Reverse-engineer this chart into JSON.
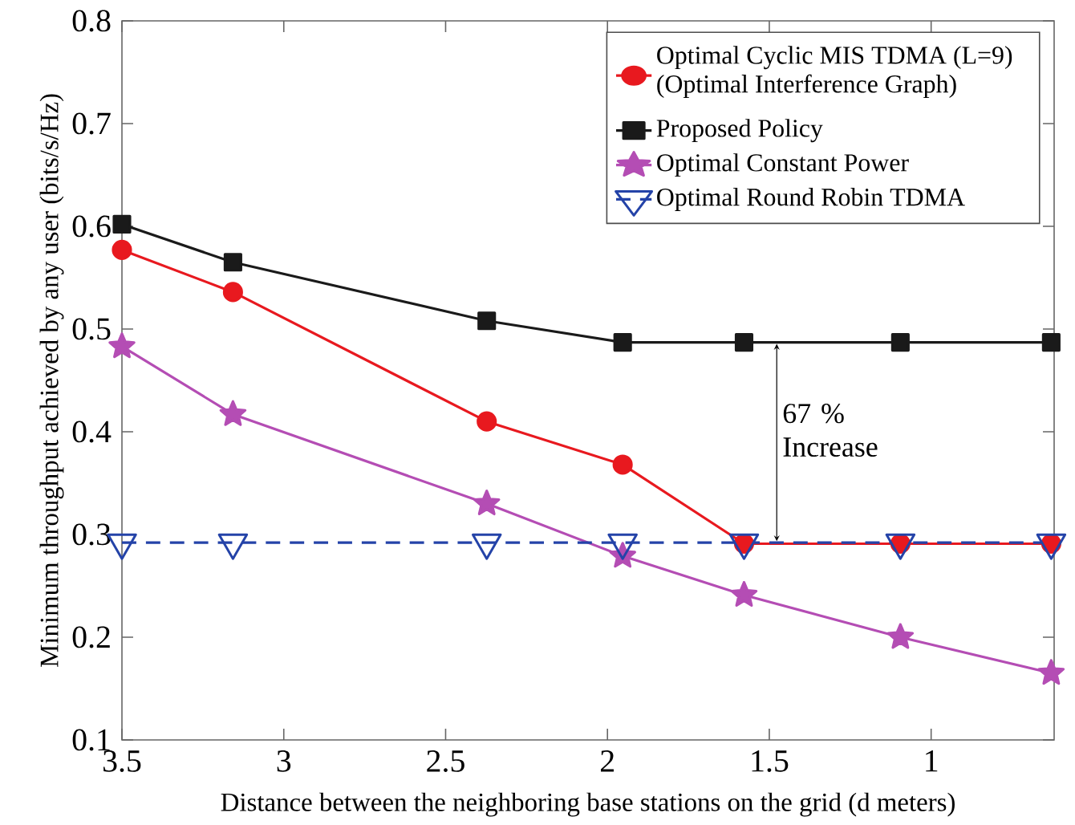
{
  "chart_data": {
    "type": "line",
    "xlabel": "Distance between the neighboring base stations on the grid  (d meters)",
    "ylabel": "Minimum throughput achieved by any user (bits/s/Hz)",
    "x": [
      3.5,
      3.157,
      2.373,
      1.953,
      1.578,
      1.095,
      0.629
    ],
    "series": [
      {
        "name": "Optimal Cyclic MIS TDMA (L=9) (Optimal Interference Graph)",
        "color": "#e8191f",
        "marker": "circle",
        "line_style": "solid",
        "values": [
          0.577,
          0.536,
          0.41,
          0.368,
          0.291,
          0.291,
          0.291
        ]
      },
      {
        "name": "Proposed Policy",
        "color": "#1a1a1a",
        "marker": "square",
        "line_style": "solid",
        "values": [
          0.602,
          0.565,
          0.508,
          0.487,
          0.487,
          0.487,
          0.487
        ]
      },
      {
        "name": "Optimal Constant Power",
        "color": "#b44db4",
        "marker": "star",
        "line_style": "solid",
        "values": [
          0.483,
          0.417,
          0.33,
          0.279,
          0.241,
          0.2,
          0.165
        ]
      },
      {
        "name": "Optimal Round Robin TDMA",
        "color": "#2443a8",
        "marker": "triangle",
        "line_style": "dashed",
        "values": [
          0.292,
          0.292,
          0.292,
          0.292,
          0.292,
          0.292,
          0.292
        ]
      }
    ],
    "annotations": [
      {
        "text": "67 % Increase",
        "x": 1.477,
        "y": 0.487
      }
    ],
    "xlim": [
      3.5,
      0.62
    ],
    "ylim": [
      0.1,
      0.8
    ],
    "xticks": [
      3.5,
      3,
      2.5,
      2,
      1.5,
      1
    ],
    "yticks": [
      0.1,
      0.2,
      0.3,
      0.4,
      0.5,
      0.6,
      0.7,
      0.8
    ],
    "grid": false,
    "legend": "top right"
  }
}
